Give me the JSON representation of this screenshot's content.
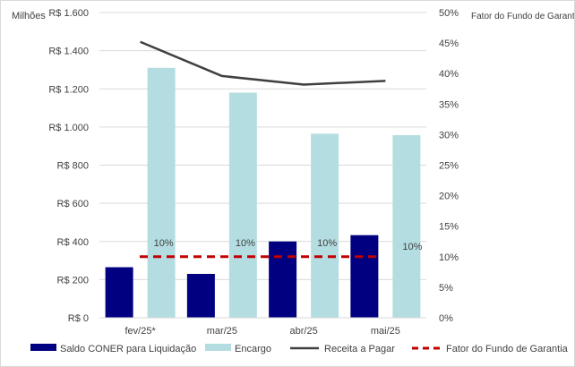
{
  "chart_data": {
    "type": "bar",
    "units_label": "Milhões",
    "secondary_axis_title": "Fator do Fundo de Garantia",
    "categories": [
      "fev/25*",
      "mar/25",
      "abr/25",
      "mai/25"
    ],
    "y_left": {
      "ylim": [
        0,
        1600
      ],
      "ticks": [
        0,
        200,
        400,
        600,
        800,
        1000,
        1200,
        1400,
        1600
      ],
      "tick_labels": [
        "R$ 0",
        "R$ 200",
        "R$ 400",
        "R$ 600",
        "R$ 800",
        "R$ 1.000",
        "R$ 1.200",
        "R$ 1.400",
        "R$ 1.600"
      ]
    },
    "y_right": {
      "ylim": [
        0,
        50
      ],
      "ticks": [
        0,
        5,
        10,
        15,
        20,
        25,
        30,
        35,
        40,
        45,
        50
      ],
      "tick_labels": [
        "0%",
        "5%",
        "10%",
        "15%",
        "20%",
        "25%",
        "30%",
        "35%",
        "40%",
        "45%",
        "50%"
      ]
    },
    "series": [
      {
        "name": "Saldo CONER para Liquidação",
        "kind": "bar",
        "axis": "left",
        "color": "#000080",
        "values": [
          265,
          230,
          400,
          433
        ]
      },
      {
        "name": "Encargo",
        "kind": "bar",
        "axis": "left",
        "color": "#b4dde2",
        "values": [
          1310,
          1180,
          965,
          957
        ]
      },
      {
        "name": "Receita a Pagar",
        "kind": "line",
        "axis": "right",
        "color": "#404040",
        "values": [
          45.2,
          39.6,
          38.2,
          38.8
        ]
      },
      {
        "name": "Fator do Fundo de Garantia",
        "kind": "dashed-line",
        "axis": "right",
        "color": "#c00000",
        "values": [
          10,
          10,
          10,
          10
        ]
      }
    ],
    "data_labels": [
      "10%",
      "10%",
      "10%",
      "10%"
    ],
    "grid": true,
    "legend_position": "bottom"
  }
}
